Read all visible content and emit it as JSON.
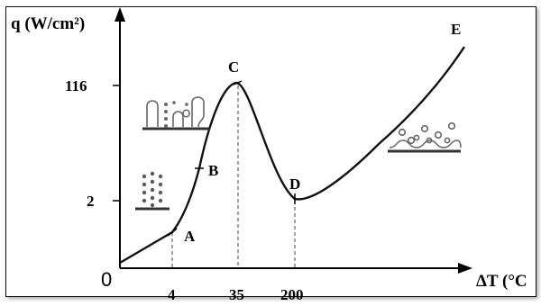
{
  "chart_data": {
    "type": "line",
    "title": "",
    "ylabel": "q (W/cm²)",
    "xlabel": "ΔT (°C",
    "origin_label": "0",
    "x_ticks": [
      "4",
      "35",
      "200"
    ],
    "y_ticks": [
      "116",
      "2"
    ],
    "points": [
      {
        "label": "A",
        "x": "4"
      },
      {
        "label": "B"
      },
      {
        "label": "C",
        "x": "35",
        "y": "116"
      },
      {
        "label": "D",
        "x": "200",
        "y": "2"
      },
      {
        "label": "E"
      }
    ],
    "grid": false,
    "legend": "none"
  },
  "colors": {
    "line": "#111111",
    "bubbles": "#555555",
    "background": "#ffffff"
  }
}
